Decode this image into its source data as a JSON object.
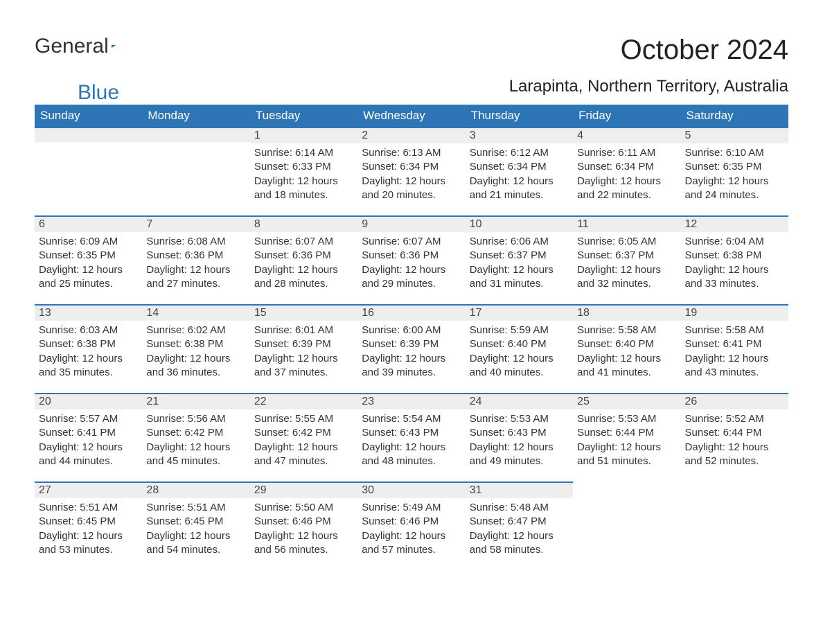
{
  "logo": {
    "general": "General",
    "blue": "Blue"
  },
  "title": "October 2024",
  "location": "Larapinta, Northern Territory, Australia",
  "columns": [
    "Sunday",
    "Monday",
    "Tuesday",
    "Wednesday",
    "Thursday",
    "Friday",
    "Saturday"
  ],
  "colors": {
    "header_bg": "#2e75b6",
    "header_text": "#ffffff",
    "daybar_bg": "#eeeeee",
    "daybar_border": "#2e75b6",
    "text": "#333333",
    "background": "#ffffff"
  },
  "weeks": [
    [
      null,
      null,
      {
        "n": "1",
        "sunrise": "Sunrise: 6:14 AM",
        "sunset": "Sunset: 6:33 PM",
        "d1": "Daylight: 12 hours",
        "d2": "and 18 minutes."
      },
      {
        "n": "2",
        "sunrise": "Sunrise: 6:13 AM",
        "sunset": "Sunset: 6:34 PM",
        "d1": "Daylight: 12 hours",
        "d2": "and 20 minutes."
      },
      {
        "n": "3",
        "sunrise": "Sunrise: 6:12 AM",
        "sunset": "Sunset: 6:34 PM",
        "d1": "Daylight: 12 hours",
        "d2": "and 21 minutes."
      },
      {
        "n": "4",
        "sunrise": "Sunrise: 6:11 AM",
        "sunset": "Sunset: 6:34 PM",
        "d1": "Daylight: 12 hours",
        "d2": "and 22 minutes."
      },
      {
        "n": "5",
        "sunrise": "Sunrise: 6:10 AM",
        "sunset": "Sunset: 6:35 PM",
        "d1": "Daylight: 12 hours",
        "d2": "and 24 minutes."
      }
    ],
    [
      {
        "n": "6",
        "sunrise": "Sunrise: 6:09 AM",
        "sunset": "Sunset: 6:35 PM",
        "d1": "Daylight: 12 hours",
        "d2": "and 25 minutes."
      },
      {
        "n": "7",
        "sunrise": "Sunrise: 6:08 AM",
        "sunset": "Sunset: 6:36 PM",
        "d1": "Daylight: 12 hours",
        "d2": "and 27 minutes."
      },
      {
        "n": "8",
        "sunrise": "Sunrise: 6:07 AM",
        "sunset": "Sunset: 6:36 PM",
        "d1": "Daylight: 12 hours",
        "d2": "and 28 minutes."
      },
      {
        "n": "9",
        "sunrise": "Sunrise: 6:07 AM",
        "sunset": "Sunset: 6:36 PM",
        "d1": "Daylight: 12 hours",
        "d2": "and 29 minutes."
      },
      {
        "n": "10",
        "sunrise": "Sunrise: 6:06 AM",
        "sunset": "Sunset: 6:37 PM",
        "d1": "Daylight: 12 hours",
        "d2": "and 31 minutes."
      },
      {
        "n": "11",
        "sunrise": "Sunrise: 6:05 AM",
        "sunset": "Sunset: 6:37 PM",
        "d1": "Daylight: 12 hours",
        "d2": "and 32 minutes."
      },
      {
        "n": "12",
        "sunrise": "Sunrise: 6:04 AM",
        "sunset": "Sunset: 6:38 PM",
        "d1": "Daylight: 12 hours",
        "d2": "and 33 minutes."
      }
    ],
    [
      {
        "n": "13",
        "sunrise": "Sunrise: 6:03 AM",
        "sunset": "Sunset: 6:38 PM",
        "d1": "Daylight: 12 hours",
        "d2": "and 35 minutes."
      },
      {
        "n": "14",
        "sunrise": "Sunrise: 6:02 AM",
        "sunset": "Sunset: 6:38 PM",
        "d1": "Daylight: 12 hours",
        "d2": "and 36 minutes."
      },
      {
        "n": "15",
        "sunrise": "Sunrise: 6:01 AM",
        "sunset": "Sunset: 6:39 PM",
        "d1": "Daylight: 12 hours",
        "d2": "and 37 minutes."
      },
      {
        "n": "16",
        "sunrise": "Sunrise: 6:00 AM",
        "sunset": "Sunset: 6:39 PM",
        "d1": "Daylight: 12 hours",
        "d2": "and 39 minutes."
      },
      {
        "n": "17",
        "sunrise": "Sunrise: 5:59 AM",
        "sunset": "Sunset: 6:40 PM",
        "d1": "Daylight: 12 hours",
        "d2": "and 40 minutes."
      },
      {
        "n": "18",
        "sunrise": "Sunrise: 5:58 AM",
        "sunset": "Sunset: 6:40 PM",
        "d1": "Daylight: 12 hours",
        "d2": "and 41 minutes."
      },
      {
        "n": "19",
        "sunrise": "Sunrise: 5:58 AM",
        "sunset": "Sunset: 6:41 PM",
        "d1": "Daylight: 12 hours",
        "d2": "and 43 minutes."
      }
    ],
    [
      {
        "n": "20",
        "sunrise": "Sunrise: 5:57 AM",
        "sunset": "Sunset: 6:41 PM",
        "d1": "Daylight: 12 hours",
        "d2": "and 44 minutes."
      },
      {
        "n": "21",
        "sunrise": "Sunrise: 5:56 AM",
        "sunset": "Sunset: 6:42 PM",
        "d1": "Daylight: 12 hours",
        "d2": "and 45 minutes."
      },
      {
        "n": "22",
        "sunrise": "Sunrise: 5:55 AM",
        "sunset": "Sunset: 6:42 PM",
        "d1": "Daylight: 12 hours",
        "d2": "and 47 minutes."
      },
      {
        "n": "23",
        "sunrise": "Sunrise: 5:54 AM",
        "sunset": "Sunset: 6:43 PM",
        "d1": "Daylight: 12 hours",
        "d2": "and 48 minutes."
      },
      {
        "n": "24",
        "sunrise": "Sunrise: 5:53 AM",
        "sunset": "Sunset: 6:43 PM",
        "d1": "Daylight: 12 hours",
        "d2": "and 49 minutes."
      },
      {
        "n": "25",
        "sunrise": "Sunrise: 5:53 AM",
        "sunset": "Sunset: 6:44 PM",
        "d1": "Daylight: 12 hours",
        "d2": "and 51 minutes."
      },
      {
        "n": "26",
        "sunrise": "Sunrise: 5:52 AM",
        "sunset": "Sunset: 6:44 PM",
        "d1": "Daylight: 12 hours",
        "d2": "and 52 minutes."
      }
    ],
    [
      {
        "n": "27",
        "sunrise": "Sunrise: 5:51 AM",
        "sunset": "Sunset: 6:45 PM",
        "d1": "Daylight: 12 hours",
        "d2": "and 53 minutes."
      },
      {
        "n": "28",
        "sunrise": "Sunrise: 5:51 AM",
        "sunset": "Sunset: 6:45 PM",
        "d1": "Daylight: 12 hours",
        "d2": "and 54 minutes."
      },
      {
        "n": "29",
        "sunrise": "Sunrise: 5:50 AM",
        "sunset": "Sunset: 6:46 PM",
        "d1": "Daylight: 12 hours",
        "d2": "and 56 minutes."
      },
      {
        "n": "30",
        "sunrise": "Sunrise: 5:49 AM",
        "sunset": "Sunset: 6:46 PM",
        "d1": "Daylight: 12 hours",
        "d2": "and 57 minutes."
      },
      {
        "n": "31",
        "sunrise": "Sunrise: 5:48 AM",
        "sunset": "Sunset: 6:47 PM",
        "d1": "Daylight: 12 hours",
        "d2": "and 58 minutes."
      },
      null,
      null
    ]
  ]
}
